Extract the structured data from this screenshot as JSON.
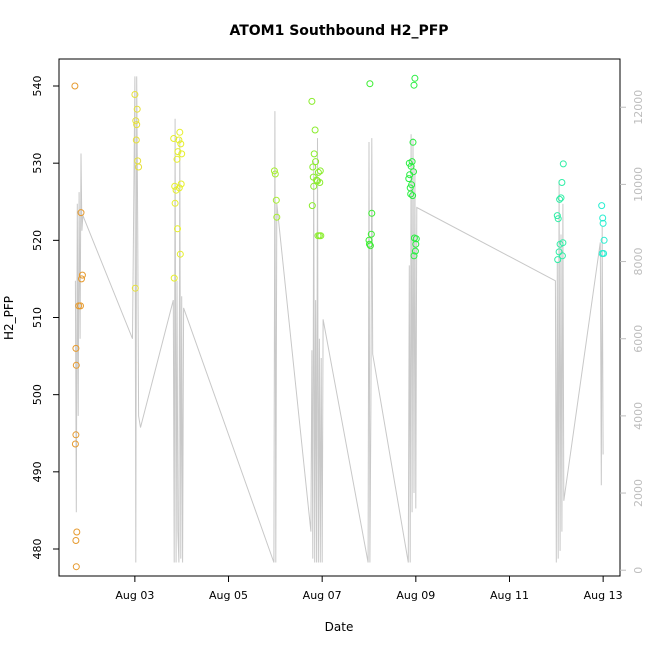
{
  "chart_data": {
    "type": "scatter",
    "title": "ATOM1 Southbound H2_PFP",
    "xlabel": "Date",
    "ylabel": "H2_PFP",
    "ylim": [
      476.5,
      543.5
    ],
    "y2lim": [
      -150,
      13250
    ],
    "xlim": [
      1.38,
      13.36
    ],
    "x_ticks": [
      {
        "value": 3,
        "label": "Aug 03"
      },
      {
        "value": 5,
        "label": "Aug 05"
      },
      {
        "value": 7,
        "label": "Aug 07"
      },
      {
        "value": 9,
        "label": "Aug 09"
      },
      {
        "value": 11,
        "label": "Aug 11"
      },
      {
        "value": 13,
        "label": "Aug 13"
      }
    ],
    "y_ticks": [
      480,
      490,
      500,
      510,
      520,
      530,
      540
    ],
    "y2_ticks": [
      0,
      2000,
      4000,
      6000,
      8000,
      10000,
      12000
    ],
    "grid": false,
    "points": [
      {
        "x": 1.72,
        "y": 540.0,
        "color": "#e69a2e"
      },
      {
        "x": 1.74,
        "y": 506.0,
        "color": "#e69a2e"
      },
      {
        "x": 1.75,
        "y": 503.8,
        "color": "#e69a2e"
      },
      {
        "x": 1.74,
        "y": 494.8,
        "color": "#e69a2e"
      },
      {
        "x": 1.73,
        "y": 493.6,
        "color": "#e69a2e"
      },
      {
        "x": 1.76,
        "y": 482.2,
        "color": "#e69a2e"
      },
      {
        "x": 1.74,
        "y": 481.1,
        "color": "#e69a2e"
      },
      {
        "x": 1.75,
        "y": 477.7,
        "color": "#e69a2e"
      },
      {
        "x": 1.8,
        "y": 511.5,
        "color": "#e69a2e"
      },
      {
        "x": 1.84,
        "y": 511.5,
        "color": "#e69a2e"
      },
      {
        "x": 1.85,
        "y": 523.6,
        "color": "#e69a2e"
      },
      {
        "x": 1.86,
        "y": 515.0,
        "color": "#e69a2e"
      },
      {
        "x": 1.88,
        "y": 515.5,
        "color": "#e69a2e"
      },
      {
        "x": 3.0,
        "y": 538.9,
        "color": "#e6e03a"
      },
      {
        "x": 3.05,
        "y": 537.0,
        "color": "#e6e03a"
      },
      {
        "x": 3.02,
        "y": 535.5,
        "color": "#e6e03a"
      },
      {
        "x": 3.04,
        "y": 535.0,
        "color": "#e6e03a"
      },
      {
        "x": 3.03,
        "y": 533.0,
        "color": "#e6e03a"
      },
      {
        "x": 3.06,
        "y": 530.3,
        "color": "#e6e03a"
      },
      {
        "x": 3.08,
        "y": 529.5,
        "color": "#e6e03a"
      },
      {
        "x": 3.01,
        "y": 513.8,
        "color": "#e6e03a"
      },
      {
        "x": 3.83,
        "y": 533.2,
        "color": "#e6ef2a"
      },
      {
        "x": 3.96,
        "y": 534.0,
        "color": "#e6ef2a"
      },
      {
        "x": 3.94,
        "y": 533.0,
        "color": "#e6ef2a"
      },
      {
        "x": 3.98,
        "y": 532.5,
        "color": "#e6ef2a"
      },
      {
        "x": 3.92,
        "y": 531.5,
        "color": "#e6ef2a"
      },
      {
        "x": 4.0,
        "y": 531.2,
        "color": "#e6ef2a"
      },
      {
        "x": 3.9,
        "y": 530.5,
        "color": "#e6ef2a"
      },
      {
        "x": 3.85,
        "y": 527.0,
        "color": "#e6ef2a"
      },
      {
        "x": 3.88,
        "y": 526.5,
        "color": "#e6ef2a"
      },
      {
        "x": 3.95,
        "y": 526.8,
        "color": "#e6ef2a"
      },
      {
        "x": 3.99,
        "y": 527.3,
        "color": "#e6ef2a"
      },
      {
        "x": 3.86,
        "y": 524.8,
        "color": "#e6ef2a"
      },
      {
        "x": 3.91,
        "y": 521.5,
        "color": "#e6ef2a"
      },
      {
        "x": 3.97,
        "y": 518.2,
        "color": "#e6ef2a"
      },
      {
        "x": 3.84,
        "y": 515.1,
        "color": "#e6ef2a"
      },
      {
        "x": 5.98,
        "y": 529.0,
        "color": "#a6ee30"
      },
      {
        "x": 6.0,
        "y": 528.6,
        "color": "#a6ee30"
      },
      {
        "x": 6.02,
        "y": 525.2,
        "color": "#a6ee30"
      },
      {
        "x": 6.03,
        "y": 523.0,
        "color": "#a6ee30"
      },
      {
        "x": 6.78,
        "y": 538.0,
        "color": "#8aed2c"
      },
      {
        "x": 6.85,
        "y": 534.3,
        "color": "#8aed2c"
      },
      {
        "x": 6.83,
        "y": 531.2,
        "color": "#8aed2c"
      },
      {
        "x": 6.86,
        "y": 530.2,
        "color": "#8aed2c"
      },
      {
        "x": 6.8,
        "y": 529.5,
        "color": "#8aed2c"
      },
      {
        "x": 6.96,
        "y": 529.0,
        "color": "#8aed2c"
      },
      {
        "x": 6.92,
        "y": 528.8,
        "color": "#8aed2c"
      },
      {
        "x": 6.81,
        "y": 528.2,
        "color": "#8aed2c"
      },
      {
        "x": 6.88,
        "y": 527.8,
        "color": "#8aed2c"
      },
      {
        "x": 6.95,
        "y": 527.5,
        "color": "#8aed2c"
      },
      {
        "x": 6.82,
        "y": 527.0,
        "color": "#8aed2c"
      },
      {
        "x": 6.9,
        "y": 527.7,
        "color": "#8aed2c"
      },
      {
        "x": 6.79,
        "y": 524.5,
        "color": "#8aed2c"
      },
      {
        "x": 6.91,
        "y": 520.6,
        "color": "#8aed2c"
      },
      {
        "x": 6.94,
        "y": 520.6,
        "color": "#8aed2c"
      },
      {
        "x": 6.97,
        "y": 520.6,
        "color": "#8aed2c"
      },
      {
        "x": 8.02,
        "y": 540.3,
        "color": "#38ee2e"
      },
      {
        "x": 8.06,
        "y": 523.5,
        "color": "#38ee2e"
      },
      {
        "x": 8.05,
        "y": 520.8,
        "color": "#38ee2e"
      },
      {
        "x": 8.0,
        "y": 520.0,
        "color": "#38ee2e"
      },
      {
        "x": 8.01,
        "y": 519.5,
        "color": "#38ee2e"
      },
      {
        "x": 8.03,
        "y": 519.3,
        "color": "#38ee2e"
      },
      {
        "x": 8.98,
        "y": 541.0,
        "color": "#28ee40"
      },
      {
        "x": 8.96,
        "y": 540.1,
        "color": "#28ee40"
      },
      {
        "x": 8.94,
        "y": 532.7,
        "color": "#28ee40"
      },
      {
        "x": 8.92,
        "y": 530.2,
        "color": "#28ee40"
      },
      {
        "x": 8.86,
        "y": 530.0,
        "color": "#28ee40"
      },
      {
        "x": 8.9,
        "y": 529.6,
        "color": "#28ee40"
      },
      {
        "x": 8.95,
        "y": 528.9,
        "color": "#28ee40"
      },
      {
        "x": 8.87,
        "y": 528.5,
        "color": "#28ee40"
      },
      {
        "x": 8.85,
        "y": 528.0,
        "color": "#28ee40"
      },
      {
        "x": 8.91,
        "y": 527.2,
        "color": "#28ee40"
      },
      {
        "x": 8.88,
        "y": 526.8,
        "color": "#28ee40"
      },
      {
        "x": 8.89,
        "y": 526.0,
        "color": "#28ee40"
      },
      {
        "x": 8.93,
        "y": 525.8,
        "color": "#28ee40"
      },
      {
        "x": 8.97,
        "y": 520.3,
        "color": "#28ee40"
      },
      {
        "x": 9.01,
        "y": 520.2,
        "color": "#28ee40"
      },
      {
        "x": 9.0,
        "y": 519.5,
        "color": "#28ee40"
      },
      {
        "x": 8.99,
        "y": 518.6,
        "color": "#28ee40"
      },
      {
        "x": 8.96,
        "y": 518.0,
        "color": "#28ee40"
      },
      {
        "x": 12.15,
        "y": 529.9,
        "color": "#30eea6"
      },
      {
        "x": 12.12,
        "y": 527.5,
        "color": "#30eea6"
      },
      {
        "x": 12.1,
        "y": 525.5,
        "color": "#30eea6"
      },
      {
        "x": 12.07,
        "y": 525.3,
        "color": "#30eea6"
      },
      {
        "x": 12.02,
        "y": 523.2,
        "color": "#30eea6"
      },
      {
        "x": 12.04,
        "y": 522.8,
        "color": "#30eea6"
      },
      {
        "x": 12.08,
        "y": 519.5,
        "color": "#30eea6"
      },
      {
        "x": 12.14,
        "y": 519.7,
        "color": "#30eea6"
      },
      {
        "x": 12.06,
        "y": 518.5,
        "color": "#30eea6"
      },
      {
        "x": 12.03,
        "y": 517.5,
        "color": "#30eea6"
      },
      {
        "x": 12.13,
        "y": 518.0,
        "color": "#30eea6"
      },
      {
        "x": 12.97,
        "y": 524.5,
        "color": "#28eed0"
      },
      {
        "x": 12.99,
        "y": 522.9,
        "color": "#28eed0"
      },
      {
        "x": 13.0,
        "y": 522.2,
        "color": "#28eed0"
      },
      {
        "x": 13.02,
        "y": 520.0,
        "color": "#28eed0"
      },
      {
        "x": 12.98,
        "y": 518.3,
        "color": "#28eed0"
      },
      {
        "x": 13.01,
        "y": 518.3,
        "color": "#28eed0"
      }
    ],
    "secondary_line": {
      "axis": "right",
      "color": "#c8c8c8",
      "x": [
        1.73,
        1.75,
        1.77,
        1.79,
        1.81,
        1.83,
        1.85,
        1.87,
        1.89,
        1.92,
        2.95,
        3.0,
        3.02,
        3.04,
        3.06,
        3.08,
        3.12,
        3.82,
        3.84,
        3.86,
        3.88,
        3.9,
        3.92,
        3.94,
        3.96,
        3.98,
        4.0,
        4.02,
        4.04,
        5.97,
        5.99,
        6.01,
        6.03,
        6.76,
        6.78,
        6.8,
        6.82,
        6.84,
        6.86,
        6.88,
        6.9,
        6.92,
        6.94,
        6.96,
        6.98,
        7.0,
        7.02,
        7.98,
        8.0,
        8.02,
        8.04,
        8.06,
        8.08,
        8.84,
        8.86,
        8.88,
        8.9,
        8.92,
        8.94,
        8.96,
        8.98,
        9.0,
        9.02,
        11.98,
        12.0,
        12.02,
        12.04,
        12.06,
        12.08,
        12.1,
        12.12,
        12.14,
        12.16,
        12.94,
        12.96,
        12.98,
        13.0
      ],
      "y": [
        7500,
        1500,
        9500,
        4000,
        9800,
        6000,
        10800,
        8800,
        9200,
        9100,
        6000,
        12800,
        200,
        12800,
        9000,
        4000,
        3700,
        7000,
        200,
        11700,
        200,
        7500,
        1000,
        200,
        11200,
        300,
        7100,
        200,
        6800,
        200,
        11900,
        200,
        9500,
        1000,
        5700,
        300,
        10600,
        200,
        7000,
        200,
        11200,
        200,
        6000,
        200,
        5500,
        200,
        6500,
        200,
        11100,
        200,
        4200,
        11200,
        5600,
        200,
        7900,
        200,
        11300,
        1500,
        11200,
        2000,
        10400,
        1600,
        9400,
        7500,
        200,
        8000,
        300,
        10100,
        500,
        8700,
        1000,
        9500,
        1800,
        8500,
        2200,
        8900,
        3000
      ]
    }
  }
}
